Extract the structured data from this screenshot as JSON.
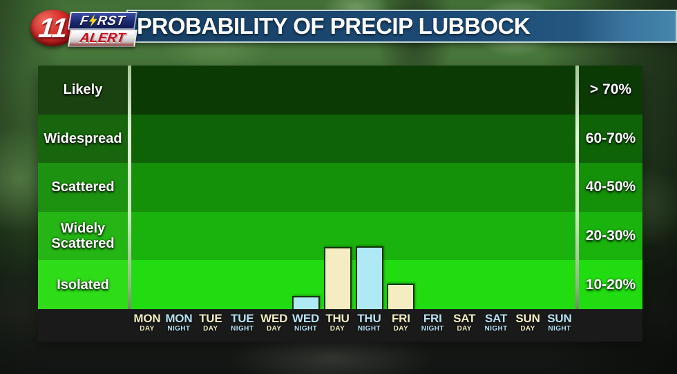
{
  "header": {
    "title": "PROBABILITY OF PRECIP LUBBOCK",
    "logo": {
      "channel_number": "11",
      "brand_line1_prefix": "F",
      "brand_line1_suffix": "RST",
      "brand_line2": "ALERT"
    }
  },
  "chart_data": {
    "type": "bar",
    "title": "PROBABILITY OF PRECIP LUBBOCK",
    "location": "LUBBOCK",
    "legend_position": "none",
    "grid": false,
    "y_bands": [
      {
        "label": "Likely",
        "range_label": "> 70%",
        "chart_color": "#0c3a05",
        "label_color": "#1a4110"
      },
      {
        "label": "Widespread",
        "range_label": "60-70%",
        "chart_color": "#0f6307",
        "label_color": "#17660d"
      },
      {
        "label": "Scattered",
        "range_label": "40-50%",
        "chart_color": "#149009",
        "label_color": "#1d9211"
      },
      {
        "label": "Widely Scattered",
        "range_label": "20-30%",
        "chart_color": "#1ab30d",
        "label_color": "#25b515"
      },
      {
        "label": "Isolated",
        "range_label": "10-20%",
        "chart_color": "#21dc10",
        "label_color": "#2edc18"
      }
    ],
    "categories": [
      {
        "day": "MON",
        "period": "DAY"
      },
      {
        "day": "MON",
        "period": "NIGHT"
      },
      {
        "day": "TUE",
        "period": "DAY"
      },
      {
        "day": "TUE",
        "period": "NIGHT"
      },
      {
        "day": "WED",
        "period": "DAY"
      },
      {
        "day": "WED",
        "period": "NIGHT"
      },
      {
        "day": "THU",
        "period": "DAY"
      },
      {
        "day": "THU",
        "period": "NIGHT"
      },
      {
        "day": "FRI",
        "period": "DAY"
      },
      {
        "day": "FRI",
        "period": "NIGHT"
      },
      {
        "day": "SAT",
        "period": "DAY"
      },
      {
        "day": "SAT",
        "period": "NIGHT"
      },
      {
        "day": "SUN",
        "period": "DAY"
      },
      {
        "day": "SUN",
        "period": "NIGHT"
      }
    ],
    "values_frac_of_chart_height": [
      0,
      0,
      0,
      0,
      0,
      0.054,
      0.255,
      0.258,
      0.105,
      0,
      0,
      0,
      0,
      0
    ],
    "bar_colors": {
      "DAY": "#f3edc1",
      "NIGHT": "#b0e9f6"
    },
    "bar_border_color": "#12350a"
  },
  "axis": {
    "day_label_color": "#f2ecc0",
    "night_label_color": "#b5e2f2"
  },
  "colors": {
    "banner_fill": "#1d4b77",
    "banner_fill_right": "#4586ad",
    "banner_border": "#d5e4da",
    "bottom_band": "#1a1a1a",
    "divider": "#cfe6bf",
    "logo_circle_red": "#c41820",
    "logo_first_navy": "#1b2a70",
    "logo_alert_red": "#c60c1e",
    "bolt_yellow": "#ffd71c"
  }
}
